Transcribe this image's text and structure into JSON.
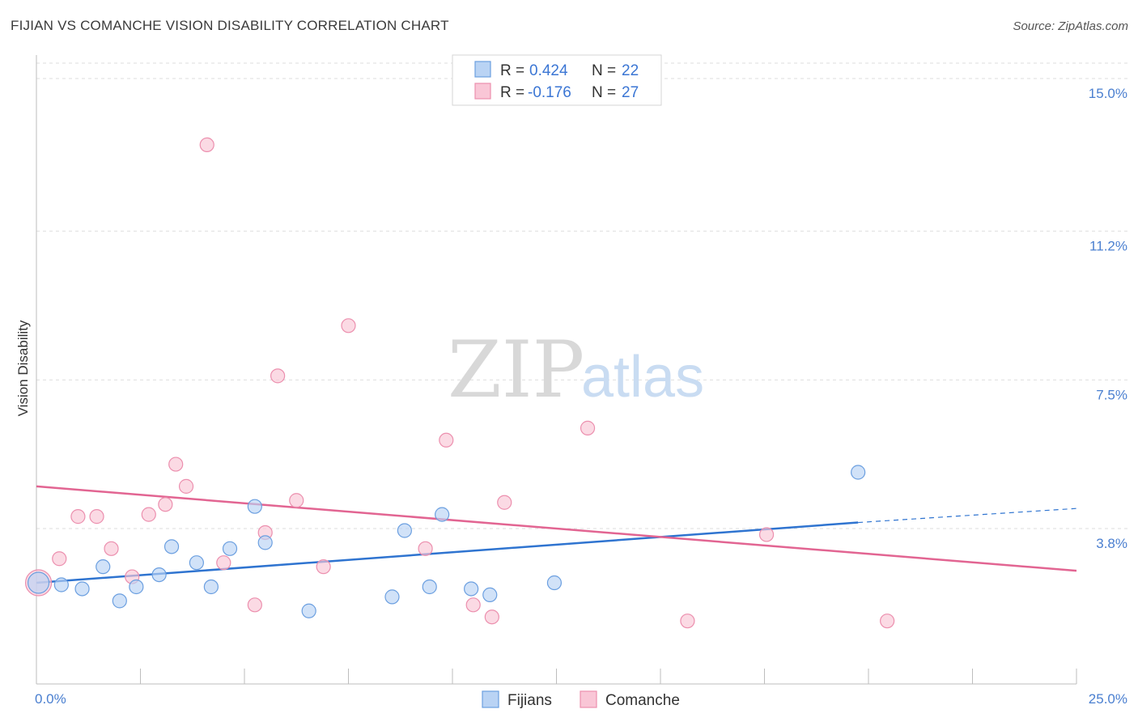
{
  "header": {
    "title": "FIJIAN VS COMANCHE VISION DISABILITY CORRELATION CHART",
    "source": "Source: ZipAtlas.com"
  },
  "watermark": {
    "zip": "ZIP",
    "atlas": "atlas"
  },
  "legend": {
    "fijians": {
      "r_label": "R =",
      "r_value": "0.424",
      "n_label": "N =",
      "n_value": "22"
    },
    "comanche": {
      "r_label": "R =",
      "r_value": "-0.176",
      "n_label": "N =",
      "n_value": "27"
    }
  },
  "bottom_legend": {
    "fijians": "Fijians",
    "comanche": "Comanche"
  },
  "colors": {
    "fijians_fill": "#b9d3f4",
    "fijians_stroke": "#6b9fe0",
    "fijians_line": "#2f74d0",
    "comanche_fill": "#f9c6d6",
    "comanche_stroke": "#ec8fae",
    "comanche_line": "#e26592",
    "tick_label": "#4a7fd0"
  },
  "chart_data": {
    "type": "scatter",
    "xlabel": "",
    "ylabel": "Vision Disability",
    "xlim": [
      0,
      25
    ],
    "ylim": [
      0,
      15.5
    ],
    "x_tick_labels": [
      {
        "value": 0,
        "label": "0.0%"
      },
      {
        "value": 25,
        "label": "25.0%"
      }
    ],
    "y_tick_labels": [
      {
        "value": 3.8,
        "label": "3.8%"
      },
      {
        "value": 7.5,
        "label": "7.5%"
      },
      {
        "value": 11.2,
        "label": "11.2%"
      },
      {
        "value": 15.0,
        "label": "15.0%"
      }
    ],
    "grid": true,
    "legend_position": "top-center",
    "series": [
      {
        "name": "Fijians",
        "points": [
          [
            0.05,
            2.45
          ],
          [
            0.6,
            2.4
          ],
          [
            1.1,
            2.3
          ],
          [
            1.6,
            2.85
          ],
          [
            2.0,
            2.0
          ],
          [
            2.4,
            2.35
          ],
          [
            2.95,
            2.65
          ],
          [
            3.25,
            3.35
          ],
          [
            3.85,
            2.95
          ],
          [
            4.2,
            2.35
          ],
          [
            4.65,
            3.3
          ],
          [
            5.25,
            4.35
          ],
          [
            5.5,
            3.45
          ],
          [
            6.55,
            1.75
          ],
          [
            8.55,
            2.1
          ],
          [
            8.85,
            3.75
          ],
          [
            9.45,
            2.35
          ],
          [
            9.75,
            4.15
          ],
          [
            10.45,
            2.3
          ],
          [
            10.9,
            2.15
          ],
          [
            12.45,
            2.45
          ],
          [
            19.75,
            5.2
          ]
        ],
        "trend": {
          "x": [
            0,
            19.75
          ],
          "y": [
            2.45,
            3.95
          ],
          "dashed_to": [
            25,
            4.3
          ]
        }
      },
      {
        "name": "Comanche",
        "points": [
          [
            0.05,
            2.45
          ],
          [
            0.55,
            3.05
          ],
          [
            1.0,
            4.1
          ],
          [
            1.45,
            4.1
          ],
          [
            1.8,
            3.3
          ],
          [
            2.3,
            2.6
          ],
          [
            2.7,
            4.15
          ],
          [
            3.1,
            4.4
          ],
          [
            3.35,
            5.4
          ],
          [
            3.6,
            4.85
          ],
          [
            4.1,
            13.35
          ],
          [
            4.5,
            2.95
          ],
          [
            5.25,
            1.9
          ],
          [
            5.5,
            3.7
          ],
          [
            5.8,
            7.6
          ],
          [
            6.25,
            4.5
          ],
          [
            6.9,
            2.85
          ],
          [
            7.5,
            8.85
          ],
          [
            9.35,
            3.3
          ],
          [
            9.85,
            6.0
          ],
          [
            10.5,
            1.9
          ],
          [
            10.95,
            1.6
          ],
          [
            11.25,
            4.45
          ],
          [
            13.25,
            6.3
          ],
          [
            15.65,
            1.5
          ],
          [
            17.55,
            3.65
          ],
          [
            20.45,
            1.5
          ]
        ],
        "trend": {
          "x": [
            0,
            25
          ],
          "y": [
            4.85,
            2.75
          ]
        }
      }
    ]
  }
}
